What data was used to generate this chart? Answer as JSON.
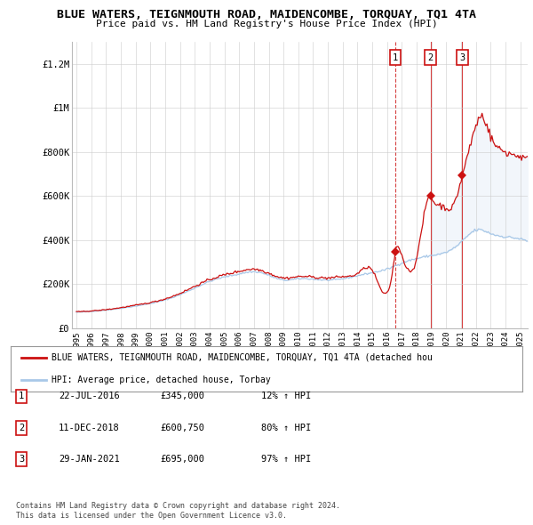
{
  "title": "BLUE WATERS, TEIGNMOUTH ROAD, MAIDENCOMBE, TORQUAY, TQ1 4TA",
  "subtitle": "Price paid vs. HM Land Registry's House Price Index (HPI)",
  "background_color": "#ffffff",
  "plot_bg_color": "#ffffff",
  "grid_color": "#cccccc",
  "ylim": [
    0,
    1300000
  ],
  "yticks": [
    0,
    200000,
    400000,
    600000,
    800000,
    1000000,
    1200000
  ],
  "ytick_labels": [
    "£0",
    "£200K",
    "£400K",
    "£600K",
    "£800K",
    "£1M",
    "£1.2M"
  ],
  "hpi_color": "#a8c8e8",
  "price_color": "#cc1111",
  "sale_marker_color": "#cc1111",
  "annotation_box_color": "#cc1111",
  "legend_label_price": "BLUE WATERS, TEIGNMOUTH ROAD, MAIDENCOMBE, TORQUAY, TQ1 4TA (detached hou",
  "legend_label_hpi": "HPI: Average price, detached house, Torbay",
  "sales": [
    {
      "num": 1,
      "date": "22-JUL-2016",
      "year": 2016.55,
      "price": 345000,
      "pct": "12%",
      "dir": "↑",
      "line_style": "--"
    },
    {
      "num": 2,
      "date": "11-DEC-2018",
      "year": 2018.94,
      "price": 600750,
      "pct": "80%",
      "dir": "↑",
      "line_style": "-"
    },
    {
      "num": 3,
      "date": "29-JAN-2021",
      "year": 2021.08,
      "price": 695000,
      "pct": "97%",
      "dir": "↑",
      "line_style": "-"
    }
  ],
  "table_rows": [
    [
      "1",
      "22-JUL-2016",
      "£345,000",
      "12% ↑ HPI"
    ],
    [
      "2",
      "11-DEC-2018",
      "£600,750",
      "80% ↑ HPI"
    ],
    [
      "3",
      "29-JAN-2021",
      "£695,000",
      "97% ↑ HPI"
    ]
  ],
  "footnote1": "Contains HM Land Registry data © Crown copyright and database right 2024.",
  "footnote2": "This data is licensed under the Open Government Licence v3.0."
}
